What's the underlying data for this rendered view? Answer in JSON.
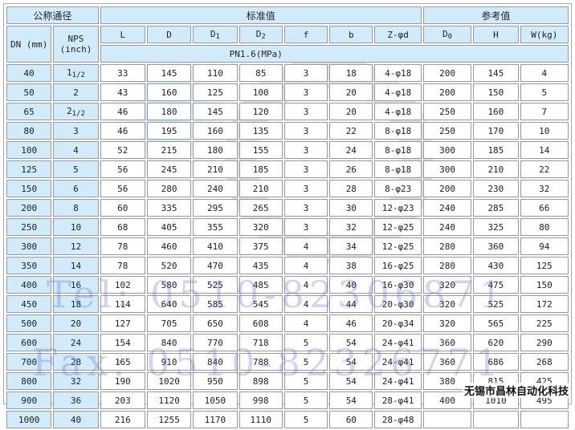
{
  "header": {
    "group_nominal": "公称通径",
    "group_standard": "标准值",
    "group_reference": "参考值",
    "dn": "DN (mm)",
    "nps": "NPS",
    "nps_unit": "(inch)",
    "cols": [
      "L",
      "D",
      "D",
      "D",
      "f",
      "b",
      "Z-φd",
      "D",
      "H",
      "W(kg)"
    ],
    "subs": {
      "D1": "1",
      "D2": "2",
      "D0": "0"
    },
    "pressure": "PN1.6(MPa)"
  },
  "rows": [
    [
      "40",
      "1 1/2",
      "33",
      "145",
      "110",
      "85",
      "3",
      "18",
      "4-φ18",
      "200",
      "145",
      "4"
    ],
    [
      "50",
      "2",
      "43",
      "160",
      "125",
      "100",
      "3",
      "20",
      "4-φ18",
      "200",
      "150",
      "5"
    ],
    [
      "65",
      "2 1/2",
      "46",
      "180",
      "145",
      "120",
      "3",
      "20",
      "4-φ18",
      "250",
      "160",
      "7"
    ],
    [
      "80",
      "3",
      "46",
      "195",
      "160",
      "135",
      "3",
      "22",
      "8-φ18",
      "250",
      "170",
      "10"
    ],
    [
      "100",
      "4",
      "52",
      "215",
      "180",
      "155",
      "3",
      "24",
      "8-φ18",
      "300",
      "185",
      "14"
    ],
    [
      "125",
      "5",
      "56",
      "245",
      "210",
      "185",
      "3",
      "26",
      "8-φ18",
      "300",
      "210",
      "22"
    ],
    [
      "150",
      "6",
      "56",
      "280",
      "240",
      "210",
      "3",
      "28",
      "8-φ23",
      "200",
      "230",
      "32"
    ],
    [
      "200",
      "8",
      "60",
      "335",
      "295",
      "265",
      "3",
      "30",
      "12-φ23",
      "240",
      "285",
      "66"
    ],
    [
      "250",
      "10",
      "68",
      "405",
      "355",
      "320",
      "3",
      "32",
      "12-φ25",
      "240",
      "325",
      "80"
    ],
    [
      "300",
      "12",
      "78",
      "460",
      "410",
      "375",
      "4",
      "34",
      "12-φ25",
      "280",
      "360",
      "94"
    ],
    [
      "350",
      "14",
      "78",
      "520",
      "470",
      "435",
      "4",
      "38",
      "16-φ25",
      "280",
      "430",
      "125"
    ],
    [
      "400",
      "16",
      "102",
      "580",
      "525",
      "485",
      "4",
      "40",
      "16-φ30",
      "320",
      "475",
      "150"
    ],
    [
      "450",
      "18",
      "114",
      "640",
      "585",
      "545",
      "4",
      "44",
      "20-φ30",
      "320",
      "525",
      "172"
    ],
    [
      "500",
      "20",
      "127",
      "705",
      "650",
      "608",
      "4",
      "46",
      "20-φ34",
      "320",
      "565",
      "225"
    ],
    [
      "600",
      "24",
      "154",
      "840",
      "770",
      "718",
      "5",
      "54",
      "24-φ41",
      "360",
      "620",
      "290"
    ],
    [
      "700",
      "28",
      "165",
      "910",
      "840",
      "788",
      "5",
      "54",
      "24-φ41",
      "360",
      "686",
      "268"
    ],
    [
      "800",
      "32",
      "190",
      "1020",
      "950",
      "898",
      "5",
      "54",
      "24-φ41",
      "380",
      "815",
      "425"
    ],
    [
      "900",
      "36",
      "203",
      "1120",
      "1050",
      "998",
      "5",
      "54",
      "28-φ41",
      "400",
      "1010",
      "495"
    ],
    [
      "1000",
      "40",
      "216",
      "1255",
      "1170",
      "1110",
      "5",
      "60",
      "28-φ48",
      "",
      "",
      ""
    ]
  ],
  "watermark": {
    "tel": "Tel: 0510-82306871",
    "fax": "Fax: 0510-82326771",
    "company": "无锡市昌林自动化科技"
  },
  "colors": {
    "header_bg": "#d2ebfb",
    "border": "#9a9a9a",
    "watermark": "#5a64c8"
  }
}
